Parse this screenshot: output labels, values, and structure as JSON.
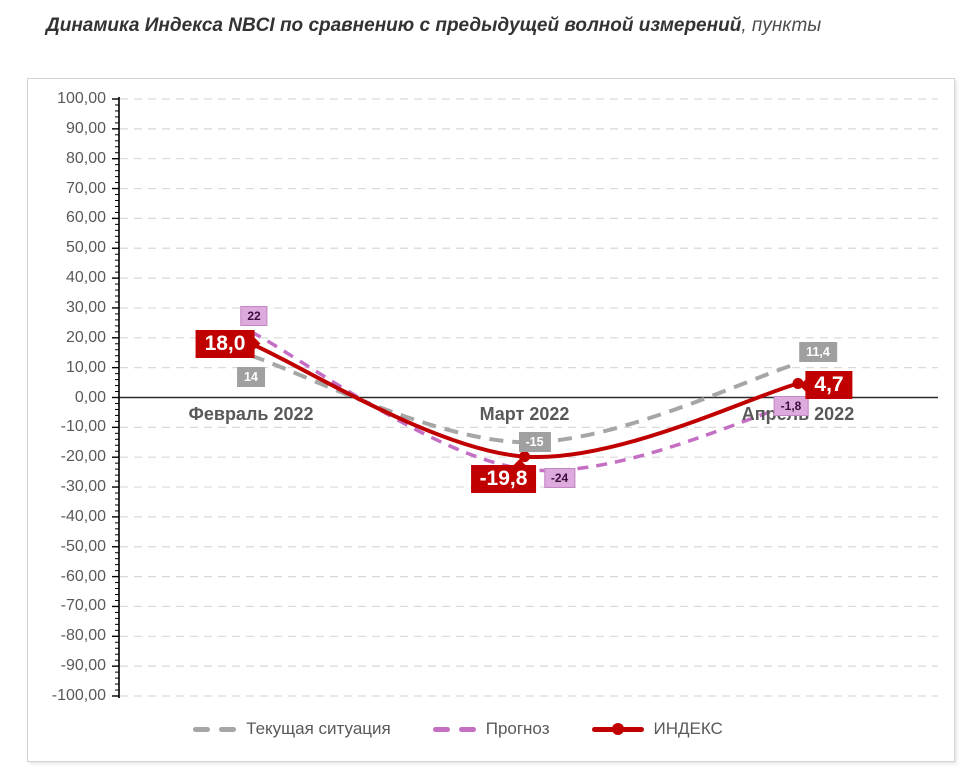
{
  "title": {
    "main": "Динамика Индекса NBCI по сравнению с предыдущей волной измерений",
    "suffix": ", пункты"
  },
  "chart_data": {
    "type": "line",
    "smoothed": true,
    "categories": [
      "Февраль 2022",
      "Март 2022",
      "Апрель 2022"
    ],
    "series": [
      {
        "key": "current",
        "name": "Текущая ситуация",
        "color": "#a6a6a6",
        "line_style": "dashed",
        "markers": false,
        "values": [
          14,
          -15,
          11.4
        ],
        "point_labels": [
          "14",
          "-15",
          "11,4"
        ],
        "label_style": "gray"
      },
      {
        "key": "forecast",
        "name": "Прогноз",
        "color": "#c46ec4",
        "line_style": "dashed",
        "markers": false,
        "values": [
          22,
          -24,
          -1.8
        ],
        "point_labels": [
          "22",
          "-24",
          "-1,8"
        ],
        "label_style": "pink"
      },
      {
        "key": "index",
        "name": "ИНДЕКС",
        "color": "#c00000",
        "line_style": "solid",
        "markers": true,
        "values": [
          18.0,
          -19.8,
          4.7
        ],
        "point_labels": [
          "18,0",
          "-19,8",
          "4,7"
        ],
        "label_style": "red"
      }
    ],
    "y_axis": {
      "min": -100,
      "max": 100,
      "major_step": 10,
      "minor_step": 2,
      "tick_labels": [
        "100,00",
        "90,00",
        "80,00",
        "70,00",
        "60,00",
        "50,00",
        "40,00",
        "30,00",
        "20,00",
        "10,00",
        "0,00",
        "-10,00",
        "-20,00",
        "-30,00",
        "-40,00",
        "-50,00",
        "-60,00",
        "-70,00",
        "-80,00",
        "-90,00",
        "-100,00"
      ]
    },
    "grid": true,
    "legend_position": "bottom"
  },
  "colors": {
    "axis_text": "#595959",
    "grid_line": "#d9d9d9",
    "zero_line": "#2b2b2b",
    "axis_line": "#000000",
    "chip_gray_bg": "#a0a0a0",
    "chip_pink_bg": "#dcaadc",
    "chip_pink_border": "#c387c3",
    "chip_pink_text": "#3d0f3d",
    "chip_red_bg": "#c00000",
    "chip_text_white": "#ffffff"
  }
}
